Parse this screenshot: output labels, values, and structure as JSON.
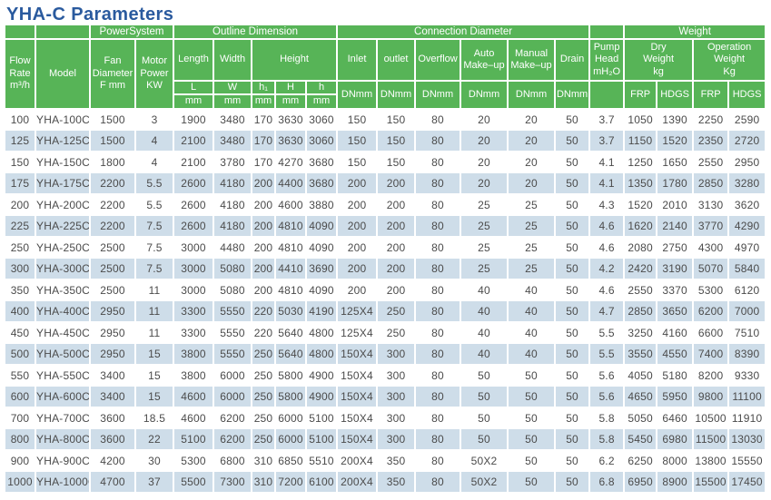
{
  "title": "YHA-C Parameters",
  "colors": {
    "header_green": "#57b457",
    "alt_row_blue": "#cedde9",
    "title_blue": "#2a5a9e",
    "data_text": "#4b4b4b",
    "header_text": "#ffffff"
  },
  "table": {
    "groups": {
      "power_system": "PowerSystem",
      "outline_dimension": "Outline Dimension",
      "connection_diameter": "Connection Diameter",
      "weight": "Weight"
    },
    "header": {
      "flow_rate": "Flow\nRate\nm³/h",
      "model": "Model",
      "fan_diameter": "Fan\nDiameter\nF mm",
      "motor_power": "Motor\nPower\nKW",
      "length": "Length",
      "width": "Width",
      "height": "Height",
      "inlet": "Inlet",
      "outlet": "outlet",
      "overflow": "Overflow",
      "auto_makeup": "Auto\nMake–up",
      "manual_makeup": "Manual\nMake–up",
      "drain": "Drain",
      "pump_head": "Pump\nHead\nmH₂O",
      "dry_weight": "Dry\nWeight\nkg",
      "operation_weight": "Operation\nWeight\nKg",
      "sub_L": "L",
      "sub_W": "W",
      "sub_h1": "h₁",
      "sub_H": "H",
      "sub_h": "h",
      "unit_mm": "mm",
      "dn_mm": "DNmm",
      "frp": "FRP",
      "hdgs": "HDGS"
    },
    "rows": [
      [
        "100",
        "YHA-100C",
        "1500",
        "3",
        "1900",
        "3480",
        "170",
        "3630",
        "3060",
        "150",
        "150",
        "80",
        "20",
        "20",
        "50",
        "3.7",
        "1050",
        "1390",
        "2250",
        "2590"
      ],
      [
        "125",
        "YHA-125C",
        "1500",
        "4",
        "2100",
        "3480",
        "170",
        "3630",
        "3060",
        "150",
        "150",
        "80",
        "20",
        "20",
        "50",
        "3.7",
        "1150",
        "1520",
        "2350",
        "2720"
      ],
      [
        "150",
        "YHA-150C",
        "1800",
        "4",
        "2100",
        "3780",
        "170",
        "4270",
        "3680",
        "150",
        "150",
        "80",
        "20",
        "20",
        "50",
        "4.1",
        "1250",
        "1650",
        "2550",
        "2950"
      ],
      [
        "175",
        "YHA-175C",
        "2200",
        "5.5",
        "2600",
        "4180",
        "200",
        "4400",
        "3680",
        "200",
        "200",
        "80",
        "20",
        "20",
        "50",
        "4.1",
        "1350",
        "1780",
        "2850",
        "3280"
      ],
      [
        "200",
        "YHA-200C",
        "2200",
        "5.5",
        "2600",
        "4180",
        "200",
        "4600",
        "3880",
        "200",
        "200",
        "80",
        "25",
        "25",
        "50",
        "4.3",
        "1520",
        "2010",
        "3130",
        "3620"
      ],
      [
        "225",
        "YHA-225C",
        "2200",
        "7.5",
        "2600",
        "4180",
        "200",
        "4810",
        "4090",
        "200",
        "200",
        "80",
        "25",
        "25",
        "50",
        "4.6",
        "1620",
        "2140",
        "3770",
        "4290"
      ],
      [
        "250",
        "YHA-250C",
        "2500",
        "7.5",
        "3000",
        "4480",
        "200",
        "4810",
        "4090",
        "200",
        "200",
        "80",
        "25",
        "25",
        "50",
        "4.6",
        "2080",
        "2750",
        "4300",
        "4970"
      ],
      [
        "300",
        "YHA-300C",
        "2500",
        "7.5",
        "3000",
        "5080",
        "200",
        "4410",
        "3690",
        "200",
        "200",
        "80",
        "25",
        "25",
        "50",
        "4.2",
        "2420",
        "3190",
        "5070",
        "5840"
      ],
      [
        "350",
        "YHA-350C",
        "2500",
        "11",
        "3000",
        "5080",
        "200",
        "4810",
        "4090",
        "200",
        "200",
        "80",
        "40",
        "40",
        "50",
        "4.6",
        "2550",
        "3370",
        "5300",
        "6120"
      ],
      [
        "400",
        "YHA-400C",
        "2950",
        "11",
        "3300",
        "5550",
        "220",
        "5030",
        "4190",
        "125X4",
        "250",
        "80",
        "40",
        "40",
        "50",
        "4.7",
        "2850",
        "3650",
        "6200",
        "7000"
      ],
      [
        "450",
        "YHA-450C",
        "2950",
        "11",
        "3300",
        "5550",
        "220",
        "5640",
        "4800",
        "125X4",
        "250",
        "80",
        "40",
        "40",
        "50",
        "5.5",
        "3250",
        "4160",
        "6600",
        "7510"
      ],
      [
        "500",
        "YHA-500C",
        "2950",
        "15",
        "3800",
        "5550",
        "250",
        "5640",
        "4800",
        "150X4",
        "300",
        "80",
        "40",
        "40",
        "50",
        "5.5",
        "3550",
        "4550",
        "7400",
        "8390"
      ],
      [
        "550",
        "YHA-550C",
        "3400",
        "15",
        "3800",
        "6000",
        "250",
        "5800",
        "4900",
        "150X4",
        "300",
        "80",
        "50",
        "50",
        "50",
        "5.6",
        "4050",
        "5180",
        "8200",
        "9330"
      ],
      [
        "600",
        "YHA-600C",
        "3400",
        "15",
        "4600",
        "6000",
        "250",
        "5800",
        "4900",
        "150X4",
        "300",
        "80",
        "50",
        "50",
        "50",
        "5.6",
        "4650",
        "5950",
        "9800",
        "11100"
      ],
      [
        "700",
        "YHA-700C",
        "3600",
        "18.5",
        "4600",
        "6200",
        "250",
        "6000",
        "5100",
        "150X4",
        "300",
        "80",
        "50",
        "50",
        "50",
        "5.8",
        "5050",
        "6460",
        "10500",
        "11910"
      ],
      [
        "800",
        "YHA-800C",
        "3600",
        "22",
        "5100",
        "6200",
        "250",
        "6000",
        "5100",
        "150X4",
        "300",
        "80",
        "50",
        "50",
        "50",
        "5.8",
        "5450",
        "6980",
        "11500",
        "13030"
      ],
      [
        "900",
        "YHA-900C",
        "4200",
        "30",
        "5300",
        "6800",
        "310",
        "6850",
        "5510",
        "200X4",
        "350",
        "80",
        "50X2",
        "50",
        "50",
        "6.2",
        "6250",
        "8000",
        "13800",
        "15550"
      ],
      [
        "1000",
        "YHA-1000C",
        "4700",
        "37",
        "5500",
        "7300",
        "310",
        "7200",
        "6100",
        "200X4",
        "350",
        "80",
        "50X2",
        "50",
        "50",
        "6.8",
        "6950",
        "8900",
        "15500",
        "17450"
      ]
    ]
  }
}
